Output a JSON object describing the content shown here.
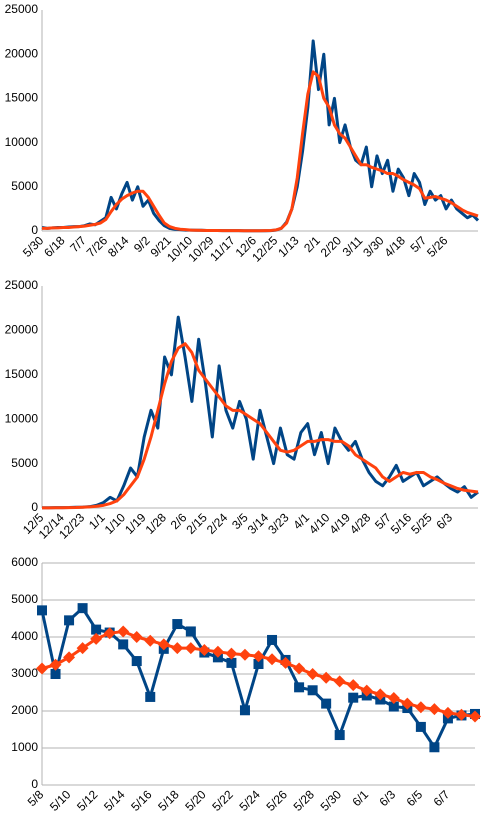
{
  "chart_data": [
    {
      "type": "line",
      "categories": [
        "5/30",
        null,
        null,
        null,
        "6/18",
        null,
        null,
        null,
        "7/7",
        null,
        null,
        null,
        "7/26",
        null,
        null,
        null,
        "8/14",
        null,
        null,
        null,
        "9/2",
        null,
        null,
        null,
        "9/21",
        null,
        null,
        null,
        "10/10",
        null,
        null,
        null,
        "10/29",
        null,
        null,
        null,
        "11/17",
        null,
        null,
        null,
        "12/6",
        null,
        null,
        null,
        "12/25",
        null,
        null,
        null,
        "1/13",
        null,
        null,
        null,
        "2/1",
        null,
        null,
        null,
        "2/20",
        null,
        null,
        null,
        "3/11",
        null,
        null,
        null,
        "3/30",
        null,
        null,
        null,
        "4/18",
        null,
        null,
        null,
        "5/7",
        null,
        null,
        null,
        "5/26",
        null,
        null,
        null,
        null,
        null,
        null
      ],
      "series": [
        {
          "color": "#004586",
          "values": [
            400,
            300,
            350,
            400,
            400,
            450,
            500,
            500,
            600,
            800,
            700,
            1100,
            1500,
            3800,
            2500,
            4200,
            5500,
            3500,
            5000,
            2800,
            3500,
            2000,
            1200,
            600,
            300,
            200,
            150,
            100,
            100,
            80,
            80,
            50,
            50,
            50,
            40,
            40,
            40,
            40,
            30,
            30,
            30,
            30,
            30,
            40,
            100,
            300,
            1000,
            2500,
            5000,
            9000,
            14000,
            21500,
            16000,
            20000,
            12000,
            15000,
            10000,
            12000,
            9500,
            8000,
            7500,
            9500,
            5000,
            8500,
            6500,
            8000,
            4500,
            7000,
            6000,
            4000,
            6500,
            5500,
            3000,
            4500,
            3500,
            4000,
            2500,
            3500,
            2500,
            2000,
            1500,
            1800,
            1200
          ]
        },
        {
          "color": "#ff420e",
          "values": [
            300,
            300,
            350,
            350,
            400,
            400,
            450,
            500,
            550,
            650,
            750,
            900,
            1300,
            2200,
            3000,
            3600,
            4000,
            4300,
            4500,
            4500,
            3800,
            2800,
            1800,
            900,
            500,
            300,
            200,
            150,
            100,
            80,
            70,
            60,
            50,
            50,
            40,
            40,
            40,
            40,
            30,
            30,
            30,
            30,
            40,
            60,
            120,
            300,
            900,
            2500,
            6000,
            11000,
            15500,
            18000,
            17500,
            15000,
            14000,
            12000,
            11000,
            10500,
            9500,
            8500,
            7500,
            7500,
            7200,
            7000,
            6800,
            6500,
            6500,
            6200,
            5800,
            5500,
            5200,
            4800,
            3700,
            3800,
            3900,
            3700,
            3500,
            3200,
            2800,
            2400,
            2100,
            1900,
            1700
          ]
        }
      ],
      "ylim": [
        0,
        25000
      ],
      "yticks": [
        0,
        5000,
        10000,
        15000,
        20000,
        25000
      ],
      "grid": false
    },
    {
      "type": "line",
      "categories": [
        "12/5",
        null,
        null,
        "12/14",
        null,
        null,
        "12/23",
        null,
        null,
        "1/1",
        null,
        null,
        "1/10",
        null,
        null,
        "1/19",
        null,
        null,
        "1/28",
        null,
        null,
        "2/6",
        null,
        null,
        "2/15",
        null,
        null,
        "2/24",
        null,
        null,
        "3/5",
        null,
        null,
        "3/14",
        null,
        null,
        "3/23",
        null,
        null,
        "4/1",
        null,
        null,
        "4/10",
        null,
        null,
        "4/19",
        null,
        null,
        "4/28",
        null,
        null,
        "5/7",
        null,
        null,
        "5/16",
        null,
        null,
        "5/25",
        null,
        null,
        "6/3",
        null,
        null,
        null,
        null
      ],
      "series": [
        {
          "color": "#004586",
          "values": [
            30,
            30,
            40,
            40,
            50,
            80,
            100,
            150,
            300,
            600,
            1200,
            800,
            2500,
            4500,
            3500,
            8000,
            11000,
            9000,
            17000,
            15000,
            21500,
            17000,
            12000,
            19000,
            14000,
            8000,
            16000,
            11000,
            9000,
            12000,
            10000,
            5500,
            11000,
            8000,
            5000,
            9000,
            6000,
            5500,
            8500,
            9500,
            6000,
            8500,
            5000,
            9000,
            7500,
            6500,
            7500,
            5500,
            4000,
            3000,
            2500,
            3500,
            4800,
            3000,
            3500,
            4000,
            2500,
            3000,
            3500,
            2800,
            2200,
            1800,
            2400,
            1200,
            1800
          ]
        },
        {
          "color": "#ff420e",
          "values": [
            20,
            20,
            30,
            30,
            40,
            50,
            80,
            120,
            200,
            300,
            500,
            800,
            1500,
            2500,
            3500,
            5500,
            8000,
            11000,
            14000,
            16500,
            18000,
            18500,
            17500,
            15500,
            14500,
            13500,
            12500,
            11500,
            11000,
            11000,
            10500,
            10000,
            9500,
            8500,
            7500,
            6500,
            6300,
            6500,
            7000,
            7500,
            7500,
            7700,
            7700,
            7500,
            7500,
            7000,
            6000,
            5500,
            5000,
            4500,
            3500,
            3000,
            3500,
            4000,
            3800,
            4000,
            4000,
            3500,
            3200,
            2800,
            2500,
            2200,
            2000,
            1900,
            1800
          ]
        }
      ],
      "ylim": [
        0,
        25000
      ],
      "yticks": [
        0,
        5000,
        10000,
        15000,
        20000,
        25000
      ],
      "grid": false
    },
    {
      "type": "line",
      "categories": [
        "5/8",
        null,
        "5/10",
        null,
        "5/12",
        null,
        "5/14",
        null,
        "5/16",
        null,
        "5/18",
        null,
        "5/20",
        null,
        "5/22",
        null,
        "5/24",
        null,
        "5/26",
        null,
        "5/28",
        null,
        "5/30",
        null,
        "6/1",
        null,
        "6/3",
        null,
        "6/5",
        null,
        "6/7",
        null,
        null
      ],
      "series": [
        {
          "color": "#004586",
          "marker": "square",
          "values": [
            4720,
            3000,
            4450,
            4780,
            4200,
            4120,
            3800,
            3350,
            2380,
            3680,
            4350,
            4150,
            3580,
            3450,
            3300,
            2020,
            3270,
            3920,
            3380,
            2640,
            2560,
            2200,
            1350,
            2360,
            2420,
            2310,
            2120,
            2080,
            1570,
            1020,
            1800,
            1880,
            1920
          ]
        },
        {
          "color": "#ff420e",
          "marker": "diamond",
          "values": [
            3150,
            3250,
            3450,
            3700,
            3950,
            4100,
            4150,
            4000,
            3900,
            3800,
            3700,
            3700,
            3650,
            3600,
            3550,
            3520,
            3480,
            3400,
            3300,
            3150,
            3000,
            2900,
            2800,
            2700,
            2550,
            2450,
            2350,
            2200,
            2100,
            2050,
            1950,
            1900,
            1850
          ]
        }
      ],
      "ylim": [
        0,
        6000
      ],
      "yticks": [
        0,
        1000,
        2000,
        3000,
        4000,
        5000,
        6000
      ],
      "grid": true
    }
  ]
}
